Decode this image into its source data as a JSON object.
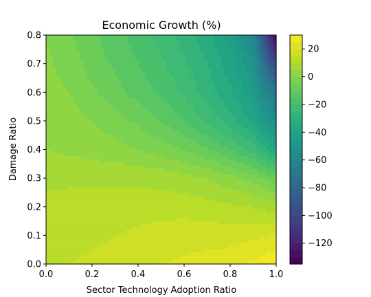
{
  "chart_data": {
    "type": "heatmap",
    "subtype": "filled-contour",
    "title": "Economic Growth (%)",
    "xlabel": "Sector Technology Adoption Ratio",
    "ylabel": "Damage Ratio",
    "xlim": [
      0.0,
      1.0
    ],
    "ylim": [
      0.0,
      0.8
    ],
    "x_ticks": [
      0.0,
      0.2,
      0.4,
      0.6,
      0.8,
      1.0
    ],
    "x_tick_labels": [
      "0.0",
      "0.2",
      "0.4",
      "0.6",
      "0.8",
      "1.0"
    ],
    "y_ticks": [
      0.0,
      0.1,
      0.2,
      0.3,
      0.4,
      0.5,
      0.6,
      0.7,
      0.8
    ],
    "y_tick_labels": [
      "0.0",
      "0.1",
      "0.2",
      "0.3",
      "0.4",
      "0.5",
      "0.6",
      "0.7",
      "0.8"
    ],
    "colormap": "viridis",
    "colorbar": {
      "vmin": -135,
      "vmax": 30,
      "ticks": [
        20,
        0,
        -20,
        -40,
        -60,
        -80,
        -100,
        -120
      ],
      "tick_labels": [
        "20",
        "0",
        "−20",
        "−40",
        "−60",
        "−80",
        "−100",
        "−120"
      ]
    },
    "x": [
      0.0,
      0.1,
      0.2,
      0.3,
      0.4,
      0.5,
      0.6,
      0.7,
      0.8,
      0.9,
      1.0
    ],
    "y": [
      0.0,
      0.1,
      0.2,
      0.3,
      0.4,
      0.5,
      0.6,
      0.7,
      0.8
    ],
    "z": [
      [
        15,
        15,
        16,
        17,
        18,
        20,
        21,
        22,
        23,
        26,
        30
      ],
      [
        12,
        13,
        14,
        15,
        16,
        17,
        18,
        18,
        18,
        19,
        21
      ],
      [
        11,
        12,
        12,
        12,
        13,
        13,
        13,
        12,
        11,
        10,
        8
      ],
      [
        9,
        9,
        9,
        9,
        9,
        8,
        7,
        5,
        2,
        -2,
        -8
      ],
      [
        5,
        4,
        3,
        2,
        0,
        -2,
        -5,
        -9,
        -15,
        -22,
        -35
      ],
      [
        3,
        2,
        0,
        -3,
        -6,
        -10,
        -15,
        -21,
        -28,
        -36,
        -55
      ],
      [
        2,
        0,
        -4,
        -8,
        -12,
        -16,
        -21,
        -27,
        -34,
        -44,
        -70
      ],
      [
        1,
        -2,
        -7,
        -11,
        -15,
        -19,
        -24,
        -30,
        -38,
        -50,
        -100
      ],
      [
        0,
        -4,
        -9,
        -13,
        -17,
        -22,
        -27,
        -33,
        -42,
        -58,
        -135
      ]
    ]
  }
}
